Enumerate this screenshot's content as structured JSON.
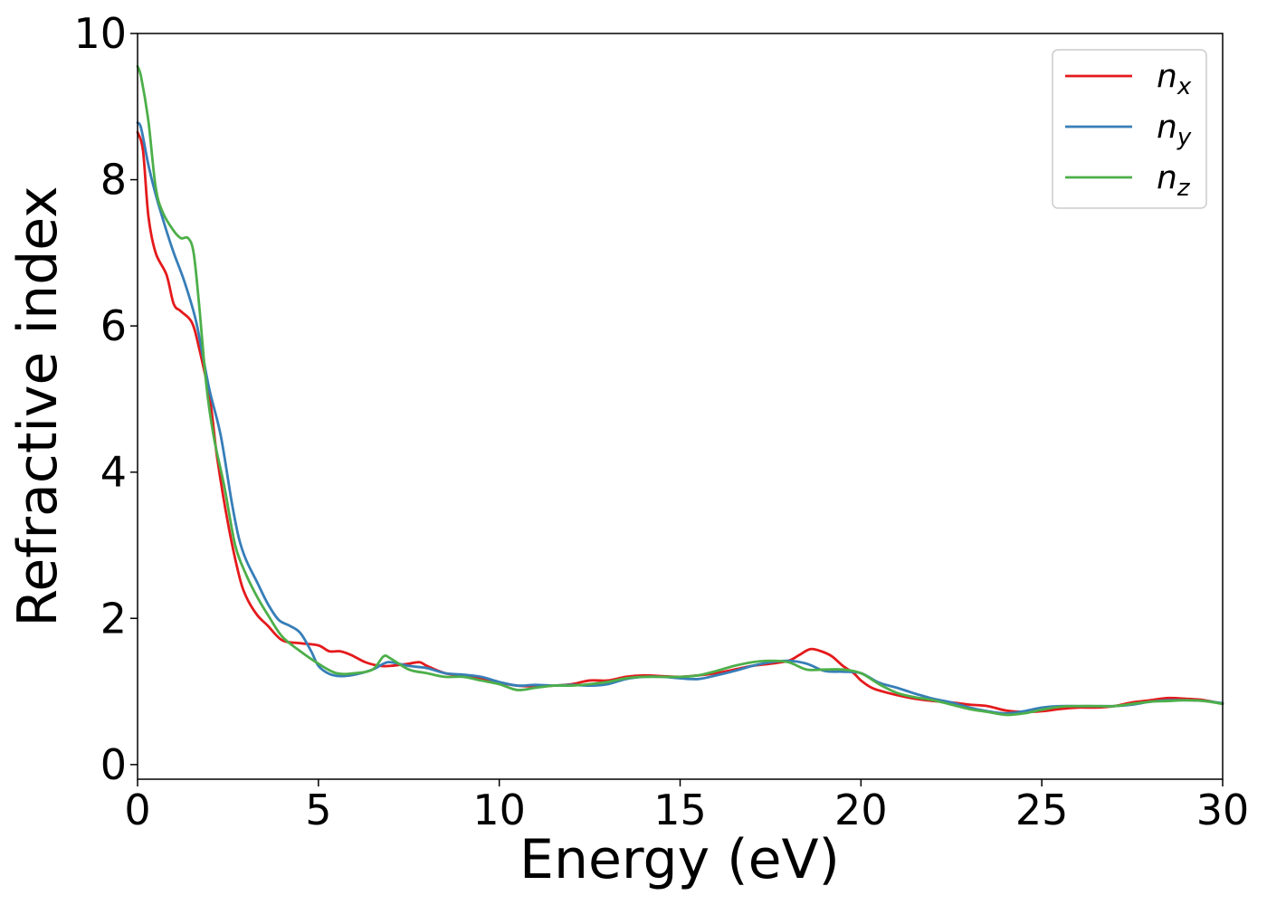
{
  "chart_data": {
    "type": "line",
    "xlabel": "Energy (eV)",
    "ylabel": "Refractive index",
    "xlim": [
      0,
      30
    ],
    "ylim": [
      -0.2,
      10
    ],
    "xticks": [
      0,
      5,
      10,
      15,
      20,
      25,
      30
    ],
    "yticks": [
      0,
      2,
      4,
      6,
      8,
      10
    ],
    "grid": false,
    "legend_position": "top-right",
    "series": [
      {
        "name": "n",
        "subscript": "x",
        "color": "#e41a1c",
        "x": [
          0,
          0.15,
          0.3,
          0.5,
          0.8,
          1.0,
          1.2,
          1.5,
          1.7,
          2.0,
          2.2,
          2.5,
          2.8,
          3.0,
          3.3,
          3.6,
          4.0,
          4.5,
          5.0,
          5.3,
          5.6,
          5.9,
          6.3,
          6.7,
          7.0,
          7.5,
          7.8,
          8.0,
          8.5,
          9.0,
          9.5,
          10.0,
          10.5,
          11.0,
          11.5,
          12.0,
          12.5,
          13.0,
          13.5,
          14.0,
          14.5,
          15.0,
          15.5,
          16.0,
          16.5,
          17.0,
          17.5,
          18.0,
          18.3,
          18.6,
          18.9,
          19.2,
          19.5,
          19.8,
          20.0,
          20.3,
          20.6,
          21.0,
          21.5,
          22.0,
          22.5,
          23.0,
          23.5,
          24.0,
          24.5,
          25.0,
          25.5,
          26.0,
          26.5,
          27.0,
          27.5,
          28.0,
          28.5,
          29.0,
          29.5,
          30.0
        ],
        "y": [
          8.65,
          8.4,
          7.5,
          7.0,
          6.7,
          6.3,
          6.2,
          6.05,
          5.7,
          5.0,
          4.2,
          3.3,
          2.6,
          2.3,
          2.05,
          1.9,
          1.7,
          1.66,
          1.63,
          1.55,
          1.55,
          1.5,
          1.4,
          1.35,
          1.35,
          1.38,
          1.4,
          1.35,
          1.25,
          1.22,
          1.18,
          1.12,
          1.08,
          1.07,
          1.08,
          1.1,
          1.15,
          1.15,
          1.2,
          1.22,
          1.21,
          1.2,
          1.22,
          1.25,
          1.3,
          1.35,
          1.38,
          1.42,
          1.5,
          1.58,
          1.55,
          1.48,
          1.35,
          1.25,
          1.15,
          1.05,
          1.0,
          0.95,
          0.9,
          0.87,
          0.85,
          0.82,
          0.8,
          0.74,
          0.72,
          0.73,
          0.76,
          0.78,
          0.78,
          0.8,
          0.85,
          0.88,
          0.91,
          0.9,
          0.88,
          0.83
        ]
      },
      {
        "name": "n",
        "subscript": "y",
        "color": "#377eb8",
        "x": [
          0,
          0.1,
          0.3,
          0.5,
          0.8,
          1.0,
          1.3,
          1.6,
          1.8,
          2.0,
          2.3,
          2.6,
          2.8,
          3.0,
          3.3,
          3.6,
          3.9,
          4.2,
          4.5,
          4.8,
          5.0,
          5.3,
          5.6,
          6.0,
          6.5,
          6.8,
          7.0,
          7.5,
          8.0,
          8.5,
          9.0,
          9.5,
          10.0,
          10.5,
          11.0,
          11.5,
          12.0,
          12.5,
          13.0,
          13.5,
          14.0,
          14.5,
          15.0,
          15.5,
          16.0,
          16.5,
          17.0,
          17.5,
          18.0,
          18.5,
          19.0,
          19.5,
          20.0,
          20.5,
          21.0,
          21.5,
          22.0,
          22.5,
          23.0,
          23.5,
          24.0,
          24.5,
          25.0,
          25.5,
          26.0,
          26.5,
          27.0,
          27.5,
          28.0,
          28.5,
          29.0,
          29.5,
          30.0
        ],
        "y": [
          8.78,
          8.7,
          8.2,
          7.8,
          7.3,
          7.0,
          6.6,
          6.1,
          5.6,
          5.1,
          4.5,
          3.6,
          3.1,
          2.8,
          2.5,
          2.2,
          1.98,
          1.9,
          1.8,
          1.55,
          1.35,
          1.24,
          1.21,
          1.23,
          1.3,
          1.38,
          1.4,
          1.35,
          1.32,
          1.25,
          1.23,
          1.2,
          1.13,
          1.08,
          1.09,
          1.08,
          1.09,
          1.08,
          1.1,
          1.17,
          1.2,
          1.2,
          1.18,
          1.17,
          1.22,
          1.28,
          1.35,
          1.4,
          1.42,
          1.38,
          1.28,
          1.27,
          1.25,
          1.12,
          1.05,
          0.97,
          0.9,
          0.85,
          0.78,
          0.73,
          0.7,
          0.73,
          0.78,
          0.8,
          0.8,
          0.8,
          0.8,
          0.82,
          0.86,
          0.88,
          0.88,
          0.87,
          0.84
        ]
      },
      {
        "name": "n",
        "subscript": "z",
        "color": "#4daf4a",
        "x": [
          0,
          0.1,
          0.3,
          0.5,
          0.7,
          1.0,
          1.2,
          1.4,
          1.55,
          1.7,
          1.9,
          2.1,
          2.4,
          2.7,
          3.0,
          3.3,
          3.6,
          4.0,
          4.5,
          5.0,
          5.5,
          6.0,
          6.5,
          6.8,
          7.0,
          7.5,
          8.0,
          8.5,
          9.0,
          9.5,
          10.0,
          10.5,
          11.0,
          11.5,
          12.0,
          12.5,
          13.0,
          13.5,
          14.0,
          14.5,
          15.0,
          15.5,
          16.0,
          16.5,
          17.0,
          17.5,
          18.0,
          18.5,
          19.0,
          19.5,
          20.0,
          20.5,
          21.0,
          21.5,
          22.0,
          22.5,
          23.0,
          23.5,
          24.0,
          24.5,
          25.0,
          25.5,
          26.0,
          26.5,
          27.0,
          27.5,
          28.0,
          28.5,
          29.0,
          29.5,
          30.0
        ],
        "y": [
          9.55,
          9.4,
          8.8,
          7.9,
          7.55,
          7.3,
          7.2,
          7.2,
          7.0,
          6.3,
          5.2,
          4.5,
          3.8,
          3.0,
          2.6,
          2.3,
          2.05,
          1.75,
          1.55,
          1.38,
          1.25,
          1.25,
          1.3,
          1.48,
          1.45,
          1.3,
          1.25,
          1.2,
          1.2,
          1.15,
          1.1,
          1.02,
          1.05,
          1.08,
          1.08,
          1.1,
          1.13,
          1.18,
          1.2,
          1.2,
          1.2,
          1.22,
          1.28,
          1.35,
          1.4,
          1.42,
          1.4,
          1.3,
          1.3,
          1.3,
          1.25,
          1.1,
          0.98,
          0.92,
          0.88,
          0.82,
          0.76,
          0.72,
          0.68,
          0.7,
          0.75,
          0.79,
          0.8,
          0.8,
          0.8,
          0.83,
          0.86,
          0.87,
          0.88,
          0.87,
          0.83
        ]
      }
    ]
  }
}
